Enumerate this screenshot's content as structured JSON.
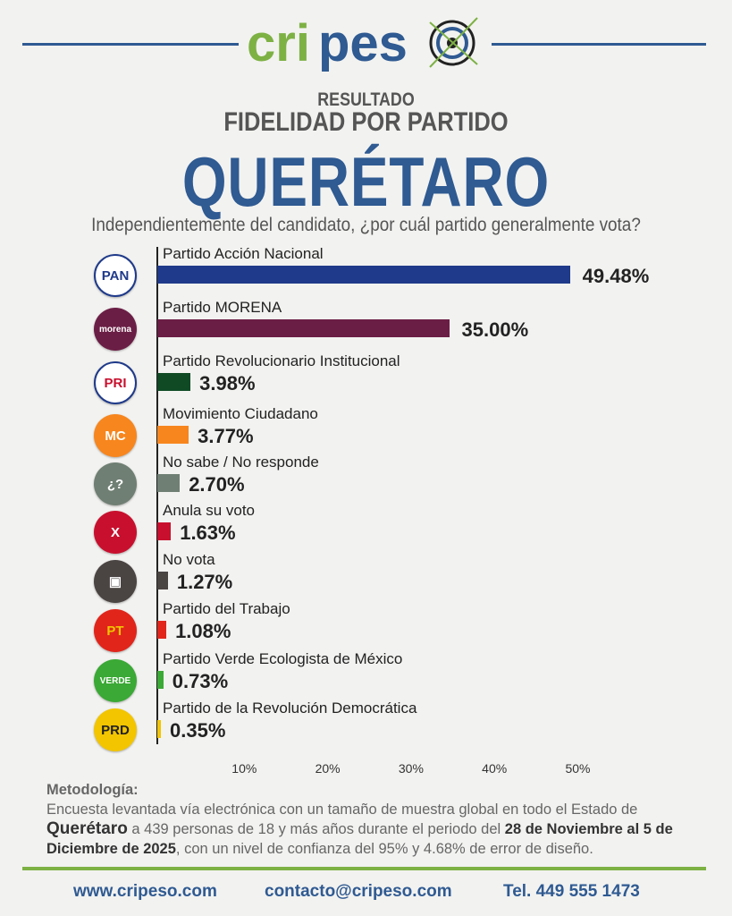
{
  "header": {
    "brand": "cripeso",
    "line1": "RESULTADO",
    "line2": "FIDELIDAD POR PARTIDO",
    "line3": "QUERÉTARO",
    "question": "Independientemente del candidato, ¿por cuál partido generalmente vota?"
  },
  "colors": {
    "brand_blue": "#2f5a92",
    "brand_green": "#7db144"
  },
  "chart_data": {
    "type": "bar",
    "orientation": "horizontal",
    "xlim": [
      0,
      50
    ],
    "ticks": [
      "10%",
      "20%",
      "30%",
      "40%",
      "50%"
    ],
    "categories": [
      "Partido Acción Nacional",
      "Partido MORENA",
      "Partido Revolucionario Institucional",
      "Movimiento Ciudadano",
      "No sabe / No responde",
      "Anula su voto",
      "No vota",
      "Partido del Trabajo",
      "Partido Verde Ecologista de México",
      "Partido de la Revolución Democrática"
    ],
    "values": [
      49.48,
      35.0,
      3.98,
      3.77,
      2.7,
      1.63,
      1.27,
      1.08,
      0.73,
      0.35
    ],
    "labels": [
      "49.48%",
      "35.00%",
      "3.98%",
      "3.77%",
      "2.70%",
      "1.63%",
      "1.27%",
      "1.08%",
      "0.73%",
      "0.35%"
    ],
    "colors": [
      "#1f3a8a",
      "#6b1e45",
      "#0f4a24",
      "#f7861e",
      "#6f7f73",
      "#c8102e",
      "#4a4443",
      "#e1251b",
      "#3aa935",
      "#f2c500"
    ],
    "icons": [
      {
        "name": "pan-logo",
        "text": "PAN",
        "bg": "#ffffff",
        "fg": "#1f3a8a"
      },
      {
        "name": "morena-logo",
        "text": "morena",
        "bg": "#6b1e45",
        "fg": "#fff"
      },
      {
        "name": "pri-logo",
        "text": "PRI",
        "bg": "#ffffff",
        "fg": "#c8102e"
      },
      {
        "name": "mc-logo",
        "text": "MC",
        "bg": "#f7861e",
        "fg": "#fff"
      },
      {
        "name": "question-icon",
        "text": "¿?",
        "bg": "#6f7f73",
        "fg": "#fff"
      },
      {
        "name": "x-icon",
        "text": "X",
        "bg": "#c8102e",
        "fg": "#fff"
      },
      {
        "name": "ballot-icon",
        "text": "▣",
        "bg": "#4a4443",
        "fg": "#fff"
      },
      {
        "name": "pt-logo",
        "text": "PT",
        "bg": "#e1251b",
        "fg": "#f2c500"
      },
      {
        "name": "verde-logo",
        "text": "VERDE",
        "bg": "#3aa935",
        "fg": "#fff"
      },
      {
        "name": "prd-logo",
        "text": "PRD",
        "bg": "#f2c500",
        "fg": "#222"
      }
    ]
  },
  "methodology": {
    "title": "Metodología:",
    "p1": "Encuesta levantada vía electrónica con un tamaño de muestra global en todo el Estado de ",
    "b1": "Querétaro",
    "p2": " a 439 personas de 18 y más años durante el periodo del ",
    "b2": "28 de Noviembre al 5 de Diciembre de 2025",
    "p3": ", con un nivel de confianza del 95% y 4.68% de error de diseño."
  },
  "footer": {
    "web": "www.cripeso.com",
    "email": "contacto@cripeso.com",
    "phone": "Tel. 449 555 1473"
  }
}
